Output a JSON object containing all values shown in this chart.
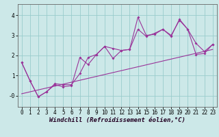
{
  "xlabel": "Windchill (Refroidissement éolien,°C)",
  "bg_color": "#cce8e8",
  "line_color": "#993399",
  "grid_color": "#99cccc",
  "xlim": [
    -0.5,
    23.5
  ],
  "ylim": [
    -0.55,
    4.55
  ],
  "xticks": [
    0,
    1,
    2,
    3,
    4,
    5,
    6,
    7,
    8,
    9,
    10,
    11,
    12,
    13,
    14,
    15,
    16,
    17,
    18,
    19,
    20,
    21,
    22,
    23
  ],
  "yticks": [
    0,
    1,
    2,
    3,
    4
  ],
  "ytick_labels": [
    "-0",
    "1",
    "2",
    "3",
    "4"
  ],
  "series1_x": [
    0,
    1,
    2,
    3,
    4,
    5,
    6,
    7,
    8,
    9,
    10,
    11,
    12,
    13,
    14,
    15,
    16,
    17,
    18,
    19,
    20,
    21,
    22,
    23
  ],
  "series1_y": [
    1.65,
    0.75,
    -0.05,
    0.2,
    0.6,
    0.55,
    0.55,
    1.1,
    1.9,
    2.05,
    2.45,
    1.85,
    2.25,
    2.3,
    3.9,
    3.0,
    3.05,
    3.3,
    3.0,
    3.75,
    3.3,
    2.05,
    2.1,
    2.55
  ],
  "series2_x": [
    0,
    1,
    2,
    3,
    4,
    5,
    6,
    7,
    8,
    9,
    10,
    11,
    12,
    13,
    14,
    15,
    16,
    17,
    18,
    19,
    20,
    21,
    22,
    23
  ],
  "series2_y": [
    1.65,
    0.75,
    -0.05,
    0.2,
    0.55,
    0.45,
    0.5,
    1.9,
    1.55,
    2.05,
    2.45,
    2.35,
    2.25,
    2.3,
    3.3,
    2.95,
    3.1,
    3.3,
    2.95,
    3.8,
    3.3,
    2.6,
    2.2,
    2.55
  ],
  "trend_x": [
    0,
    23
  ],
  "trend_y": [
    0.1,
    2.3
  ],
  "xlabel_fontsize": 6.5,
  "tick_fontsize": 5.5,
  "marker_size": 2.0,
  "line_width": 0.8
}
